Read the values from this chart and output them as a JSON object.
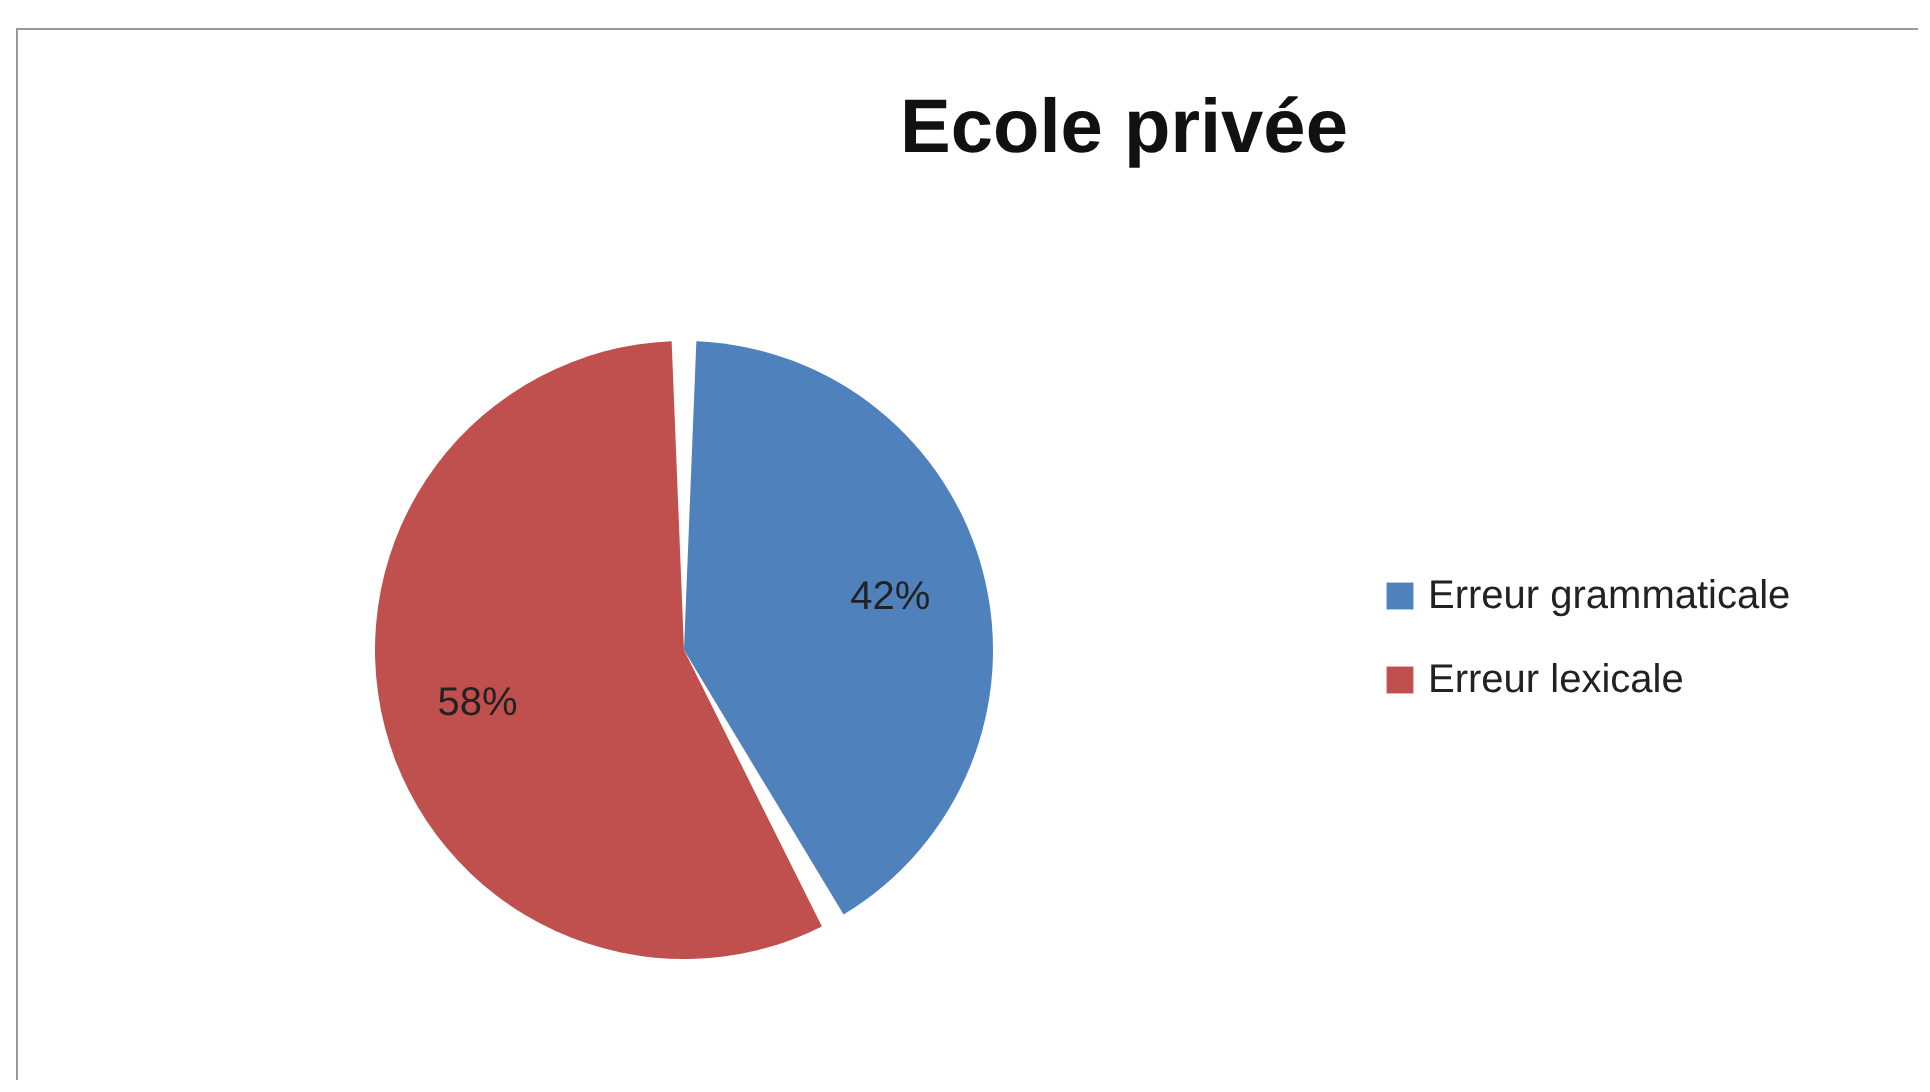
{
  "chart_data": {
    "type": "pie",
    "title": "Ecole privée",
    "categories": [
      "Erreur grammaticale",
      "Erreur lexicale"
    ],
    "values": [
      42,
      58
    ],
    "colors": [
      "#4f81bd",
      "#c0504d"
    ],
    "value_labels": [
      "42%",
      "58%"
    ],
    "legend": "right"
  }
}
